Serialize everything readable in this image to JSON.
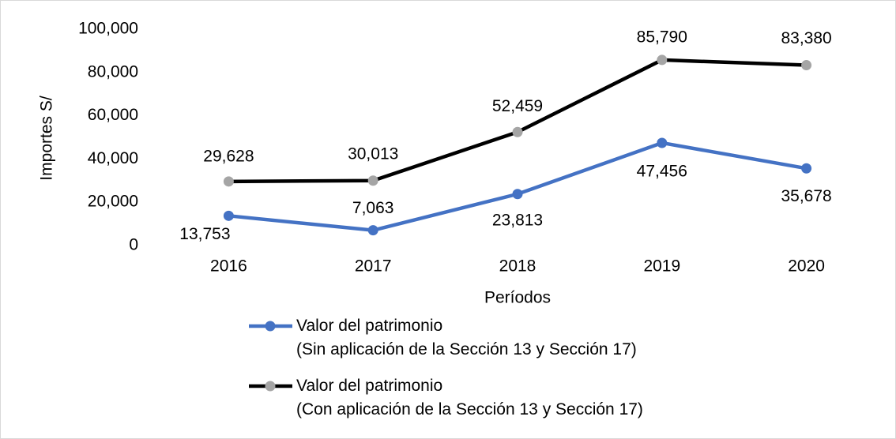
{
  "chart_data": {
    "type": "line",
    "x_label": "Períodos",
    "y_label": "Importes S/",
    "categories": [
      "2016",
      "2017",
      "2018",
      "2019",
      "2020"
    ],
    "series": [
      {
        "name": "Valor del patrimonio\n(Sin aplicación de la Sección 13 y Sección 17)",
        "color": "#4472c4",
        "marker_color": "#4472c4",
        "values": [
          13753,
          7063,
          23813,
          47456,
          35678
        ],
        "value_labels": [
          "13,753",
          "7,063",
          "23,813",
          "47,456",
          "35,678"
        ]
      },
      {
        "name": "Valor del patrimonio\n(Con aplicación de la Sección 13 y Sección 17)",
        "color": "#000000",
        "marker_color": "#a5a5a5",
        "values": [
          29628,
          30013,
          52459,
          85790,
          83380
        ],
        "value_labels": [
          "29,628",
          "30,013",
          "52,459",
          "85,790",
          "83,380"
        ]
      }
    ],
    "ylim": [
      0,
      100000
    ],
    "yticks": [
      0,
      {
        "value": 20000,
        "label": "20,000"
      },
      {
        "value": 40000,
        "label": "40,000"
      },
      {
        "value": 60000,
        "label": "60,000"
      },
      {
        "value": 80000,
        "label": "80,000"
      },
      {
        "value": 100000,
        "label": "100,000"
      }
    ],
    "grid": false
  }
}
